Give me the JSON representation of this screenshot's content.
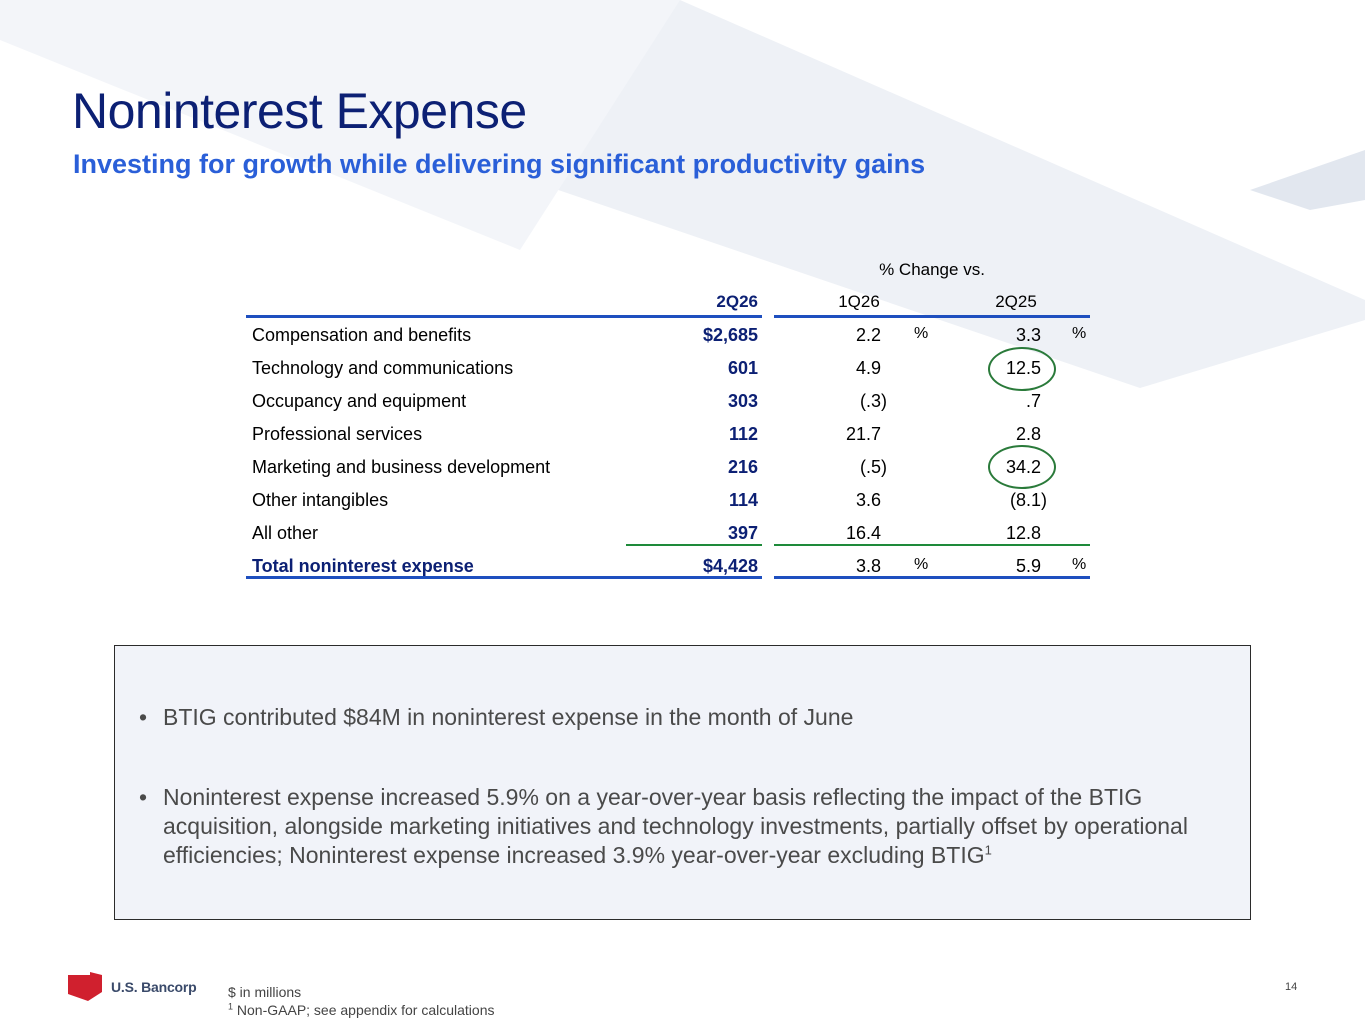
{
  "slide": {
    "title": "Noninterest Expense",
    "subtitle": "Investing for growth while delivering significant productivity gains",
    "page_number": "14"
  },
  "table": {
    "change_header": "% Change vs.",
    "columns": [
      "2Q26",
      "1Q26",
      "2Q25"
    ],
    "rows": [
      {
        "label": "Compensation and benefits",
        "v2q26": "$2,685",
        "c1q26": "2.2",
        "p1": "%",
        "c2q25": "3.3",
        "p2": "%"
      },
      {
        "label": "Technology and communications",
        "v2q26": "601",
        "c1q26": "4.9",
        "p1": "",
        "c2q25": "12.5",
        "p2": ""
      },
      {
        "label": "Occupancy and equipment",
        "v2q26": "303",
        "c1q26": "(.3)",
        "p1": "",
        "c2q25": ".7",
        "p2": ""
      },
      {
        "label": "Professional services",
        "v2q26": "112",
        "c1q26": "21.7",
        "p1": "",
        "c2q25": "2.8",
        "p2": ""
      },
      {
        "label": "Marketing and business development",
        "v2q26": "216",
        "c1q26": "(.5)",
        "p1": "",
        "c2q25": "34.2",
        "p2": ""
      },
      {
        "label": "Other intangibles",
        "v2q26": "114",
        "c1q26": "3.6",
        "p1": "",
        "c2q25": "(8.1)",
        "p2": ""
      },
      {
        "label": "All other",
        "v2q26": "397",
        "c1q26": "16.4",
        "p1": "",
        "c2q25": "12.8",
        "p2": ""
      },
      {
        "label": "Total noninterest expense",
        "v2q26": "$4,428",
        "c1q26": "3.8",
        "p1": "%",
        "c2q25": "5.9",
        "p2": "%"
      }
    ]
  },
  "notes": {
    "bullet1": "BTIG contributed $84M in noninterest expense in the month of June",
    "bullet2": "Noninterest expense increased 5.9% on a year-over-year basis reflecting the impact of the BTIG acquisition, alongside marketing initiatives and technology investments, partially offset by operational efficiencies; Noninterest expense increased 3.9% year-over-year excluding BTIG",
    "bullet2_sup": "1"
  },
  "footer": {
    "logo_text": "U.S. Bancorp",
    "line1": "$ in millions",
    "line2_sup": "1",
    "line2": " Non-GAAP; see appendix for calculations"
  },
  "colors": {
    "title": "#0c2074",
    "subtitle": "#2a5fd8",
    "rule_blue": "#1e4fbf",
    "rule_green": "#1e8a3a",
    "logo_red": "#d0202e"
  }
}
